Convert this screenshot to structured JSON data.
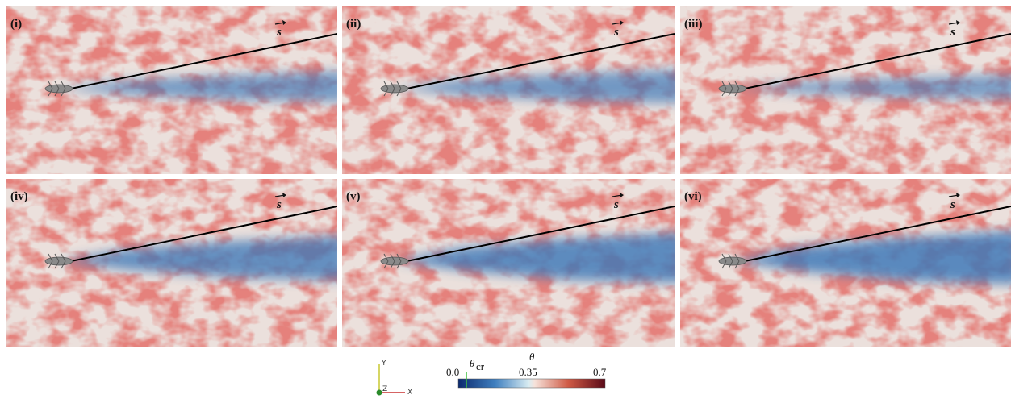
{
  "panels": [
    {
      "label": "(i)",
      "vector_label": "s"
    },
    {
      "label": "(ii)",
      "vector_label": "s"
    },
    {
      "label": "(iii)",
      "vector_label": "s"
    },
    {
      "label": "(iv)",
      "vector_label": "s"
    },
    {
      "label": "(v)",
      "vector_label": "s"
    },
    {
      "label": "(vi)",
      "vector_label": "s"
    }
  ],
  "colorbar": {
    "title": "θ",
    "ticks": [
      "0.0",
      "0.35",
      "0.7"
    ],
    "threshold_label": {
      "symbol": "θ",
      "subscript": "cr"
    }
  },
  "axes_triad": {
    "y": "Y",
    "z": "Z",
    "x": "X"
  }
}
